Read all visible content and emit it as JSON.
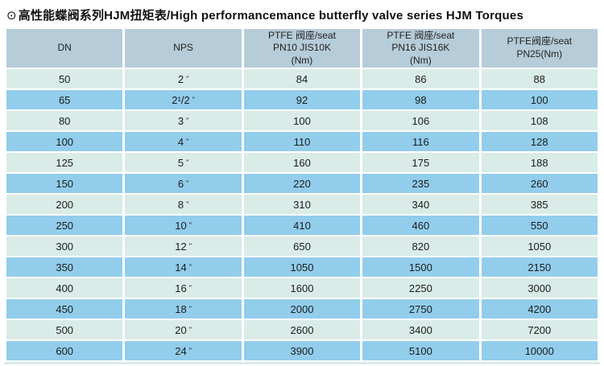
{
  "page": {
    "title_marker": "⊙",
    "title": "高性能蝶阀系列HJM扭矩表/High performancemance butterfly valve series HJM Torques"
  },
  "colors": {
    "header_bg": "#b6ccd8",
    "row_light_bg": "#d9ece8",
    "row_blue_bg": "#92cdec",
    "text": "#1c1c1c"
  },
  "table": {
    "inch_mark": "\"",
    "columns": [
      {
        "lines": [
          "DN"
        ]
      },
      {
        "lines": [
          "NPS"
        ]
      },
      {
        "lines": [
          "PTFE 阀座/seat",
          "PN10 JIS10K",
          "(Nm)"
        ]
      },
      {
        "lines": [
          "PTFE 阀座/seat",
          "PN16 JIS16K",
          "(Nm)"
        ]
      },
      {
        "lines": [
          "PTFE阀座/seat",
          "PN25(Nm)"
        ]
      }
    ],
    "rows": [
      {
        "dn": "50",
        "nps": "2",
        "pn10": "84",
        "pn16": "86",
        "pn25": "88"
      },
      {
        "dn": "65",
        "nps": "2¹/2",
        "pn10": "92",
        "pn16": "98",
        "pn25": "100"
      },
      {
        "dn": "80",
        "nps": "3",
        "pn10": "100",
        "pn16": "106",
        "pn25": "108"
      },
      {
        "dn": "100",
        "nps": "4",
        "pn10": "110",
        "pn16": "116",
        "pn25": "128"
      },
      {
        "dn": "125",
        "nps": "5",
        "pn10": "160",
        "pn16": "175",
        "pn25": "188"
      },
      {
        "dn": "150",
        "nps": "6",
        "pn10": "220",
        "pn16": "235",
        "pn25": "260"
      },
      {
        "dn": "200",
        "nps": "8",
        "pn10": "310",
        "pn16": "340",
        "pn25": "385"
      },
      {
        "dn": "250",
        "nps": "10",
        "pn10": "410",
        "pn16": "460",
        "pn25": "550"
      },
      {
        "dn": "300",
        "nps": "12",
        "pn10": "650",
        "pn16": "820",
        "pn25": "1050"
      },
      {
        "dn": "350",
        "nps": "14",
        "pn10": "1050",
        "pn16": "1500",
        "pn25": "2150"
      },
      {
        "dn": "400",
        "nps": "16",
        "pn10": "1600",
        "pn16": "2250",
        "pn25": "3000"
      },
      {
        "dn": "450",
        "nps": "18",
        "pn10": "2000",
        "pn16": "2750",
        "pn25": "4200"
      },
      {
        "dn": "500",
        "nps": "20",
        "pn10": "2600",
        "pn16": "3400",
        "pn25": "7200"
      },
      {
        "dn": "600",
        "nps": "24",
        "pn10": "3900",
        "pn16": "5100",
        "pn25": "10000"
      }
    ]
  }
}
